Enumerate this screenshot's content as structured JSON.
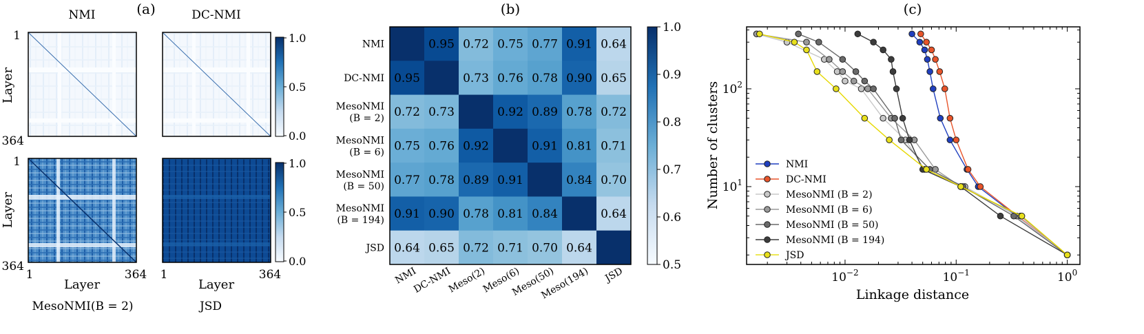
{
  "panels": {
    "a_label": "(a)",
    "b_label": "(b)",
    "c_label": "(c)"
  },
  "heatmaps": [
    {
      "title": "NMI",
      "caption": ""
    },
    {
      "title": "DC-NMI",
      "caption": ""
    },
    {
      "title": "",
      "caption": "MesoNMI(B = 2)"
    },
    {
      "title": "",
      "caption": "JSD"
    }
  ],
  "heatmap_axes": {
    "ylabel": "Layer",
    "xlabel": "Layer",
    "tick_min": "1",
    "tick_max": "364",
    "colorbar_ticks": [
      "1.0",
      "0.5",
      "0.0"
    ]
  },
  "colors": {
    "cmap_light": "#f7fbff",
    "cmap_dark": "#08306b",
    "NMI": "#1f3fbf",
    "DC-NMI": "#e8542a",
    "Meso2": "#c8c8c8",
    "Meso6": "#9a9a9a",
    "Meso50": "#6a6a6a",
    "Meso194": "#3c3c3c",
    "JSD": "#e8e01c"
  },
  "chart_data": [
    {
      "type": "heatmap",
      "panel": "(b)",
      "row_labels": [
        "NMI",
        "DC-NMI",
        "MesoNMI (B = 2)",
        "MesoNMI (B = 6)",
        "MesoNMI (B = 50)",
        "MesoNMI (B = 194)",
        "JSD"
      ],
      "col_labels": [
        "NMI",
        "DC-NMI",
        "Meso(2)",
        "Meso(6)",
        "Meso(50)",
        "Meso(194)",
        "JSD"
      ],
      "values": [
        [
          1.0,
          0.95,
          0.72,
          0.75,
          0.77,
          0.91,
          0.64
        ],
        [
          0.95,
          1.0,
          0.73,
          0.76,
          0.78,
          0.9,
          0.65
        ],
        [
          0.72,
          0.73,
          1.0,
          0.92,
          0.89,
          0.78,
          0.72
        ],
        [
          0.75,
          0.76,
          0.92,
          1.0,
          0.91,
          0.81,
          0.71
        ],
        [
          0.77,
          0.78,
          0.89,
          0.91,
          1.0,
          0.84,
          0.7
        ],
        [
          0.91,
          0.9,
          0.78,
          0.81,
          0.84,
          1.0,
          0.64
        ],
        [
          0.64,
          0.65,
          0.72,
          0.71,
          0.7,
          0.64,
          1.0
        ]
      ],
      "colorbar_range": [
        0.5,
        1.0
      ],
      "colorbar_ticks": [
        "1.0",
        "0.9",
        "0.8",
        "0.7",
        "0.6",
        "0.5"
      ]
    },
    {
      "type": "line",
      "panel": "(c)",
      "xlabel": "Linkage distance",
      "ylabel": "Number of clusters",
      "xscale": "log",
      "yscale": "log",
      "xlim": [
        0.0013,
        1.3
      ],
      "ylim": [
        1.6,
        430
      ],
      "xticks": [
        {
          "v": 0.01,
          "label": "10^-2"
        },
        {
          "v": 0.1,
          "label": "10^-1"
        },
        {
          "v": 1,
          "label": "10^0"
        }
      ],
      "yticks": [
        {
          "v": 10,
          "label": "10^1"
        },
        {
          "v": 100,
          "label": "10^2"
        }
      ],
      "legend_position": "lower-left",
      "series": [
        {
          "name": "NMI",
          "key": "NMI",
          "x": [
            0.04,
            0.047,
            0.052,
            0.055,
            0.058,
            0.062,
            0.072,
            0.088,
            0.125,
            0.158,
            1.0
          ],
          "y": [
            364,
            300,
            250,
            200,
            150,
            100,
            50,
            30,
            15,
            10,
            2
          ]
        },
        {
          "name": "DC-NMI",
          "key": "DC-NMI",
          "x": [
            0.048,
            0.054,
            0.06,
            0.065,
            0.071,
            0.079,
            0.088,
            0.1,
            0.128,
            0.165,
            1.0
          ],
          "y": [
            364,
            300,
            250,
            200,
            150,
            100,
            50,
            30,
            15,
            10,
            2
          ]
        },
        {
          "name": "MesoNMI (B = 2)",
          "key": "Meso2",
          "x": [
            0.0016,
            0.003,
            0.0065,
            0.0085,
            0.01,
            0.014,
            0.022,
            0.035,
            0.052,
            0.12,
            0.35,
            1.0
          ],
          "y": [
            364,
            300,
            200,
            150,
            120,
            100,
            50,
            30,
            15,
            10,
            5,
            2
          ]
        },
        {
          "name": "MesoNMI (B = 6)",
          "key": "Meso6",
          "x": [
            0.0016,
            0.0045,
            0.0072,
            0.0095,
            0.012,
            0.016,
            0.026,
            0.042,
            0.065,
            0.11,
            0.38,
            1.0
          ],
          "y": [
            364,
            300,
            200,
            150,
            120,
            100,
            50,
            30,
            15,
            10,
            5,
            2
          ]
        },
        {
          "name": "MesoNMI (B = 50)",
          "key": "Meso50",
          "x": [
            0.0038,
            0.0058,
            0.0095,
            0.0125,
            0.015,
            0.018,
            0.028,
            0.032,
            0.058,
            0.115,
            0.33,
            1.0
          ],
          "y": [
            364,
            300,
            200,
            150,
            120,
            100,
            50,
            30,
            15,
            10,
            5,
            2
          ]
        },
        {
          "name": "MesoNMI (B = 194)",
          "key": "Meso194",
          "x": [
            0.013,
            0.018,
            0.022,
            0.026,
            0.027,
            0.029,
            0.033,
            0.038,
            0.05,
            0.11,
            0.25,
            1.0
          ],
          "y": [
            364,
            300,
            250,
            200,
            150,
            100,
            50,
            30,
            15,
            10,
            5,
            2
          ]
        },
        {
          "name": "JSD",
          "key": "JSD",
          "x": [
            0.0017,
            0.0035,
            0.0045,
            0.0056,
            0.0083,
            0.015,
            0.025,
            0.054,
            0.11,
            0.39,
            1.0
          ],
          "y": [
            364,
            300,
            250,
            150,
            100,
            50,
            30,
            15,
            10,
            5,
            2
          ]
        }
      ]
    }
  ]
}
